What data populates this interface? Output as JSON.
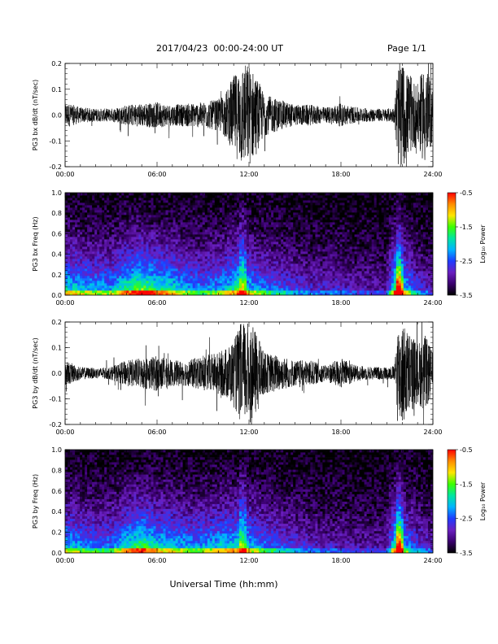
{
  "header": {
    "title": "2017/04/23  00:00-24:00 UT",
    "page": "Page 1/1"
  },
  "xaxis_label": "Universal Time (hh:mm)",
  "colors": {
    "trace": "#000000",
    "colormap": [
      "#000000",
      "#3a006e",
      "#6a1fc0",
      "#1e3cff",
      "#00b4ff",
      "#00e6a0",
      "#3cff00",
      "#ffe600",
      "#ff8c00",
      "#ff0000"
    ]
  },
  "chart_data": [
    {
      "type": "line",
      "ylabel": "PG3 bx dB/dt (nT/sec)",
      "x_ticks": [
        "00:00",
        "06:00",
        "12:00",
        "18:00",
        "24:00"
      ],
      "xlim": [
        0,
        24
      ],
      "ylim": [
        -0.2,
        0.2
      ],
      "y_ticks": [
        "-0.2",
        "-0.1",
        "0.0",
        "0.1",
        "0.2"
      ],
      "envelope": {
        "x": [
          0,
          1,
          2,
          3,
          4,
          5,
          6,
          7,
          8,
          9,
          10,
          10.5,
          11,
          11.5,
          12,
          12.5,
          13,
          14,
          15,
          16,
          17,
          18,
          19,
          20,
          21,
          21.5,
          21.7,
          22,
          22.5,
          23,
          23.5,
          24
        ],
        "amp": [
          0.05,
          0.03,
          0.025,
          0.025,
          0.04,
          0.045,
          0.05,
          0.04,
          0.045,
          0.05,
          0.06,
          0.09,
          0.15,
          0.2,
          0.2,
          0.15,
          0.08,
          0.06,
          0.04,
          0.04,
          0.03,
          0.045,
          0.03,
          0.025,
          0.025,
          0.03,
          0.2,
          0.2,
          0.15,
          0.12,
          0.2,
          0.1
        ]
      }
    },
    {
      "type": "heatmap",
      "ylabel": "PG3 bx Freq (Hz)",
      "x_ticks": [
        "00:00",
        "06:00",
        "12:00",
        "18:00",
        "24:00"
      ],
      "xlim": [
        0,
        24
      ],
      "ylim": [
        0,
        1.0
      ],
      "y_ticks": [
        "0.0",
        "0.2",
        "0.4",
        "0.6",
        "0.8",
        "1.0"
      ],
      "colorbar_label": "Log₁₀ Power",
      "colorbar_ticks": [
        "-0.5",
        "-1.5",
        "-2.5",
        "-3.5"
      ],
      "clim": [
        -3.5,
        -0.5
      ],
      "activity": {
        "x": [
          0,
          1,
          2,
          3,
          4,
          5,
          6,
          7,
          8,
          9,
          10,
          11,
          11.5,
          12,
          13,
          14,
          15,
          16,
          17,
          18,
          19,
          20,
          21,
          21.8,
          22,
          23,
          24
        ],
        "level": [
          0.55,
          0.5,
          0.45,
          0.45,
          0.6,
          0.7,
          0.6,
          0.55,
          0.45,
          0.4,
          0.45,
          0.55,
          0.7,
          0.5,
          0.4,
          0.35,
          0.3,
          0.25,
          0.25,
          0.25,
          0.2,
          0.2,
          0.2,
          0.9,
          0.55,
          0.3,
          0.2
        ]
      }
    },
    {
      "type": "line",
      "ylabel": "PG3 by dB/dt (nT/sec)",
      "x_ticks": [
        "00:00",
        "06:00",
        "12:00",
        "18:00",
        "24:00"
      ],
      "xlim": [
        0,
        24
      ],
      "ylim": [
        -0.2,
        0.2
      ],
      "y_ticks": [
        "-0.2",
        "-0.1",
        "0.0",
        "0.1",
        "0.2"
      ],
      "envelope": {
        "x": [
          0,
          1,
          2,
          3,
          4,
          5,
          6,
          7,
          8,
          9,
          10,
          10.5,
          11,
          11.5,
          12,
          12.5,
          13,
          14,
          15,
          16,
          17,
          18,
          19,
          20,
          21,
          21.5,
          21.7,
          22,
          22.5,
          23,
          23.5,
          24
        ],
        "amp": [
          0.05,
          0.025,
          0.02,
          0.025,
          0.05,
          0.06,
          0.07,
          0.05,
          0.05,
          0.07,
          0.08,
          0.1,
          0.13,
          0.2,
          0.2,
          0.16,
          0.08,
          0.07,
          0.05,
          0.05,
          0.03,
          0.06,
          0.03,
          0.025,
          0.025,
          0.03,
          0.2,
          0.2,
          0.16,
          0.12,
          0.15,
          0.08
        ]
      }
    },
    {
      "type": "heatmap",
      "ylabel": "PG3 by Freq (Hz)",
      "x_ticks": [
        "00:00",
        "06:00",
        "12:00",
        "18:00",
        "24:00"
      ],
      "xlim": [
        0,
        24
      ],
      "ylim": [
        0,
        1.0
      ],
      "y_ticks": [
        "0.0",
        "0.2",
        "0.4",
        "0.6",
        "0.8",
        "1.0"
      ],
      "colorbar_label": "Log₁₀ Power",
      "colorbar_ticks": [
        "-0.5",
        "-1.5",
        "-2.5",
        "-3.5"
      ],
      "clim": [
        -3.5,
        -0.5
      ],
      "activity": {
        "x": [
          0,
          1,
          2,
          3,
          4,
          5,
          6,
          7,
          8,
          9,
          10,
          11,
          11.5,
          12,
          13,
          14,
          15,
          16,
          17,
          18,
          19,
          20,
          21,
          21.8,
          22,
          23,
          24
        ],
        "level": [
          0.5,
          0.45,
          0.4,
          0.4,
          0.55,
          0.65,
          0.55,
          0.5,
          0.45,
          0.45,
          0.5,
          0.55,
          0.6,
          0.5,
          0.4,
          0.35,
          0.3,
          0.25,
          0.22,
          0.22,
          0.2,
          0.2,
          0.2,
          0.85,
          0.5,
          0.3,
          0.2
        ]
      }
    }
  ]
}
